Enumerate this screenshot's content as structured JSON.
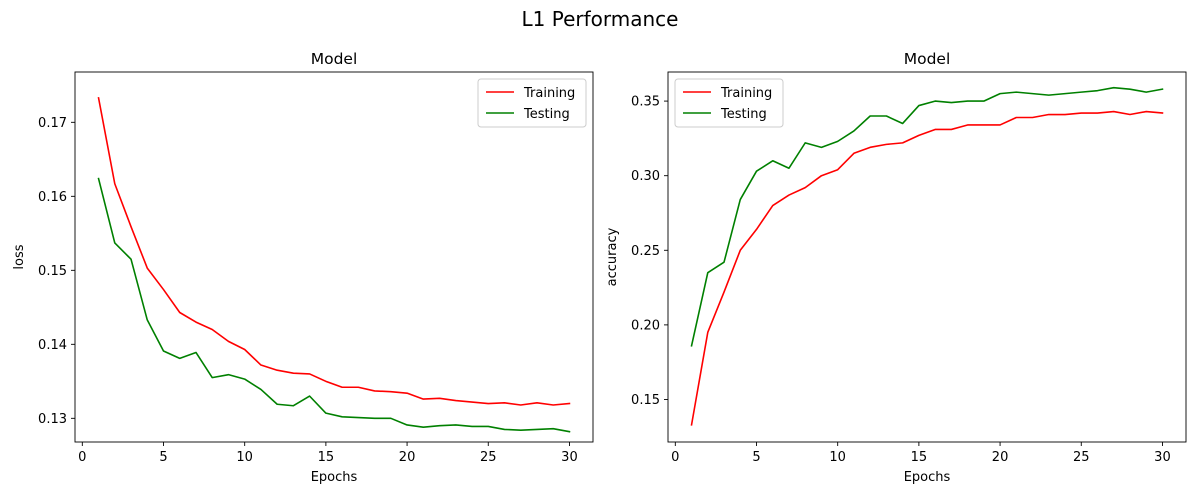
{
  "figure_title": "L1 Performance",
  "chart_data": [
    {
      "type": "line",
      "title": "Model",
      "xlabel": "Epochs",
      "ylabel": "loss",
      "xlim": [
        -0.45,
        31.45
      ],
      "ylim": [
        0.1268,
        0.1768
      ],
      "xticks": [
        0,
        5,
        10,
        15,
        20,
        25,
        30
      ],
      "yticks": [
        0.13,
        0.14,
        0.15,
        0.16,
        0.17
      ],
      "ytick_labels": [
        "0.13",
        "0.14",
        "0.15",
        "0.16",
        "0.17"
      ],
      "legend_position": "upper-right",
      "grid": false,
      "x": [
        1,
        2,
        3,
        4,
        5,
        6,
        7,
        8,
        9,
        10,
        11,
        12,
        13,
        14,
        15,
        16,
        17,
        18,
        19,
        20,
        21,
        22,
        23,
        24,
        25,
        26,
        27,
        28,
        29,
        30
      ],
      "series": [
        {
          "name": "Training",
          "color": "#ff0000",
          "values": [
            0.1733,
            0.1617,
            0.1559,
            0.1503,
            0.1474,
            0.1443,
            0.143,
            0.142,
            0.1404,
            0.1393,
            0.1372,
            0.1365,
            0.1361,
            0.136,
            0.135,
            0.1342,
            0.1342,
            0.1337,
            0.1336,
            0.1334,
            0.1326,
            0.1327,
            0.1324,
            0.1322,
            0.132,
            0.1321,
            0.1318,
            0.1321,
            0.1318,
            0.132
          ]
        },
        {
          "name": "Testing",
          "color": "#008000",
          "values": [
            0.1624,
            0.1537,
            0.1515,
            0.1433,
            0.1391,
            0.1381,
            0.1389,
            0.1355,
            0.1359,
            0.1353,
            0.1339,
            0.1319,
            0.1317,
            0.133,
            0.1307,
            0.1302,
            0.1301,
            0.13,
            0.13,
            0.1291,
            0.1288,
            0.129,
            0.1291,
            0.1289,
            0.1289,
            0.1285,
            0.1284,
            0.1285,
            0.1286,
            0.1282
          ]
        }
      ]
    },
    {
      "type": "line",
      "title": "Model",
      "xlabel": "Epochs",
      "ylabel": "accuracy",
      "xlim": [
        -0.45,
        31.45
      ],
      "ylim": [
        0.1215,
        0.3695
      ],
      "xticks": [
        0,
        5,
        10,
        15,
        20,
        25,
        30
      ],
      "yticks": [
        0.15,
        0.2,
        0.25,
        0.3,
        0.35
      ],
      "ytick_labels": [
        "0.15",
        "0.20",
        "0.25",
        "0.30",
        "0.35"
      ],
      "legend_position": "upper-left",
      "grid": false,
      "x": [
        1,
        2,
        3,
        4,
        5,
        6,
        7,
        8,
        9,
        10,
        11,
        12,
        13,
        14,
        15,
        16,
        17,
        18,
        19,
        20,
        21,
        22,
        23,
        24,
        25,
        26,
        27,
        28,
        29,
        30
      ],
      "series": [
        {
          "name": "Training",
          "color": "#ff0000",
          "values": [
            0.133,
            0.195,
            0.222,
            0.25,
            0.264,
            0.28,
            0.287,
            0.292,
            0.3,
            0.304,
            0.315,
            0.319,
            0.321,
            0.322,
            0.327,
            0.331,
            0.331,
            0.334,
            0.334,
            0.334,
            0.339,
            0.339,
            0.341,
            0.341,
            0.342,
            0.342,
            0.343,
            0.341,
            0.343,
            0.342
          ]
        },
        {
          "name": "Testing",
          "color": "#008000",
          "values": [
            0.186,
            0.235,
            0.242,
            0.284,
            0.303,
            0.31,
            0.305,
            0.322,
            0.319,
            0.323,
            0.33,
            0.34,
            0.34,
            0.335,
            0.347,
            0.35,
            0.349,
            0.35,
            0.35,
            0.355,
            0.356,
            0.355,
            0.354,
            0.355,
            0.356,
            0.357,
            0.359,
            0.358,
            0.356,
            0.358
          ]
        }
      ]
    }
  ]
}
